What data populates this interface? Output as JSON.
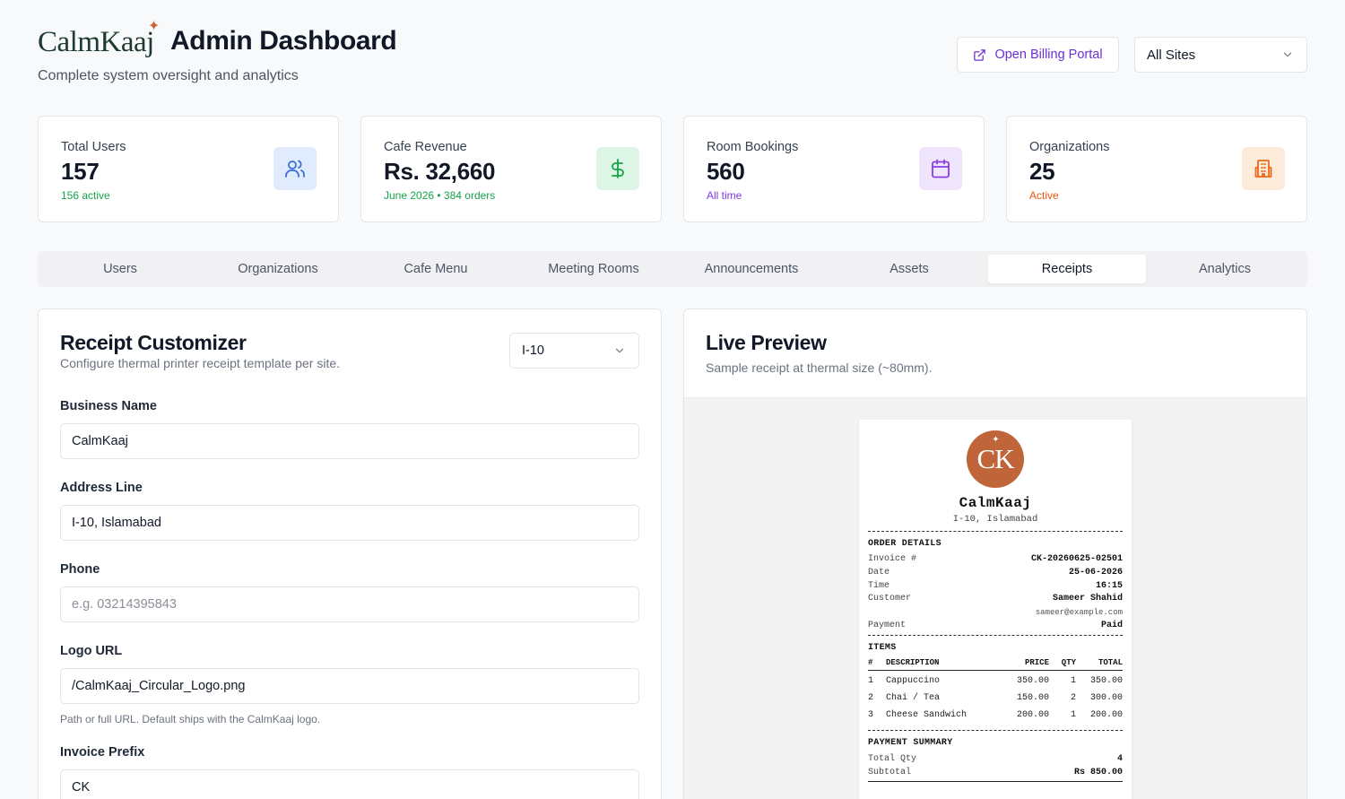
{
  "header": {
    "logo_text": "CalmKaaj",
    "title": "Admin Dashboard",
    "subtitle": "Complete system oversight and analytics",
    "billing_label": "Open Billing Portal",
    "site_select": "All Sites"
  },
  "stats": [
    {
      "label": "Total Users",
      "value": "157",
      "sub": "156 active",
      "sub_color": "#16a34a",
      "icon": "users-icon",
      "icon_bg": "#e0ebfd",
      "icon_color": "#3b6fd4"
    },
    {
      "label": "Cafe Revenue",
      "value": "Rs. 32,660",
      "sub": "June 2026 • 384 orders",
      "sub_color": "#16a34a",
      "icon": "dollar-icon",
      "icon_bg": "#dcf5e4",
      "icon_color": "#16a34a"
    },
    {
      "label": "Room Bookings",
      "value": "560",
      "sub": "All time",
      "sub_color": "#7c3aed",
      "icon": "calendar-icon",
      "icon_bg": "#efe6fd",
      "icon_color": "#8b3fe0"
    },
    {
      "label": "Organizations",
      "value": "25",
      "sub": "Active",
      "sub_color": "#ea580c",
      "icon": "building-icon",
      "icon_bg": "#fdebd9",
      "icon_color": "#ea6a1f"
    }
  ],
  "tabs": [
    "Users",
    "Organizations",
    "Cafe Menu",
    "Meeting Rooms",
    "Announcements",
    "Assets",
    "Receipts",
    "Analytics"
  ],
  "active_tab": "Receipts",
  "customizer": {
    "title": "Receipt Customizer",
    "description": "Configure thermal printer receipt template per site.",
    "site": "I-10",
    "fields": {
      "business_label": "Business Name",
      "business_value": "CalmKaaj",
      "address_label": "Address Line",
      "address_value": "I-10, Islamabad",
      "phone_label": "Phone",
      "phone_placeholder": "e.g. 03214395843",
      "logo_label": "Logo URL",
      "logo_value": "/CalmKaaj_Circular_Logo.png",
      "logo_help": "Path or full URL. Default ships with the CalmKaaj logo.",
      "prefix_label": "Invoice Prefix",
      "prefix_value": "CK"
    }
  },
  "preview": {
    "title": "Live Preview",
    "description": "Sample receipt at thermal size (~80mm).",
    "receipt": {
      "logo_initials": "CK",
      "name": "CalmKaaj",
      "address": "I-10, Islamabad",
      "order_section": "ORDER DETAILS",
      "invoice_label": "Invoice #",
      "invoice": "CK-20260625-02501",
      "date_label": "Date",
      "date": "25-06-2026",
      "time_label": "Time",
      "time": "16:15",
      "customer_label": "Customer",
      "customer": "Sameer Shahid",
      "email": "sameer@example.com",
      "payment_label": "Payment",
      "payment": "Paid",
      "items_section": "ITEMS",
      "items_head": {
        "n": "#",
        "desc": "DESCRIPTION",
        "price": "PRICE",
        "qty": "QTY",
        "total": "TOTAL"
      },
      "items": [
        {
          "n": "1",
          "desc": "Cappuccino",
          "price": "350.00",
          "qty": "1",
          "total": "350.00"
        },
        {
          "n": "2",
          "desc": "Chai / Tea",
          "price": "150.00",
          "qty": "2",
          "total": "300.00"
        },
        {
          "n": "3",
          "desc": "Cheese Sandwich",
          "price": "200.00",
          "qty": "1",
          "total": "200.00"
        }
      ],
      "summary_section": "PAYMENT SUMMARY",
      "total_qty_label": "Total Qty",
      "total_qty": "4",
      "subtotal_label": "Subtotal",
      "subtotal": "Rs 850.00"
    }
  }
}
